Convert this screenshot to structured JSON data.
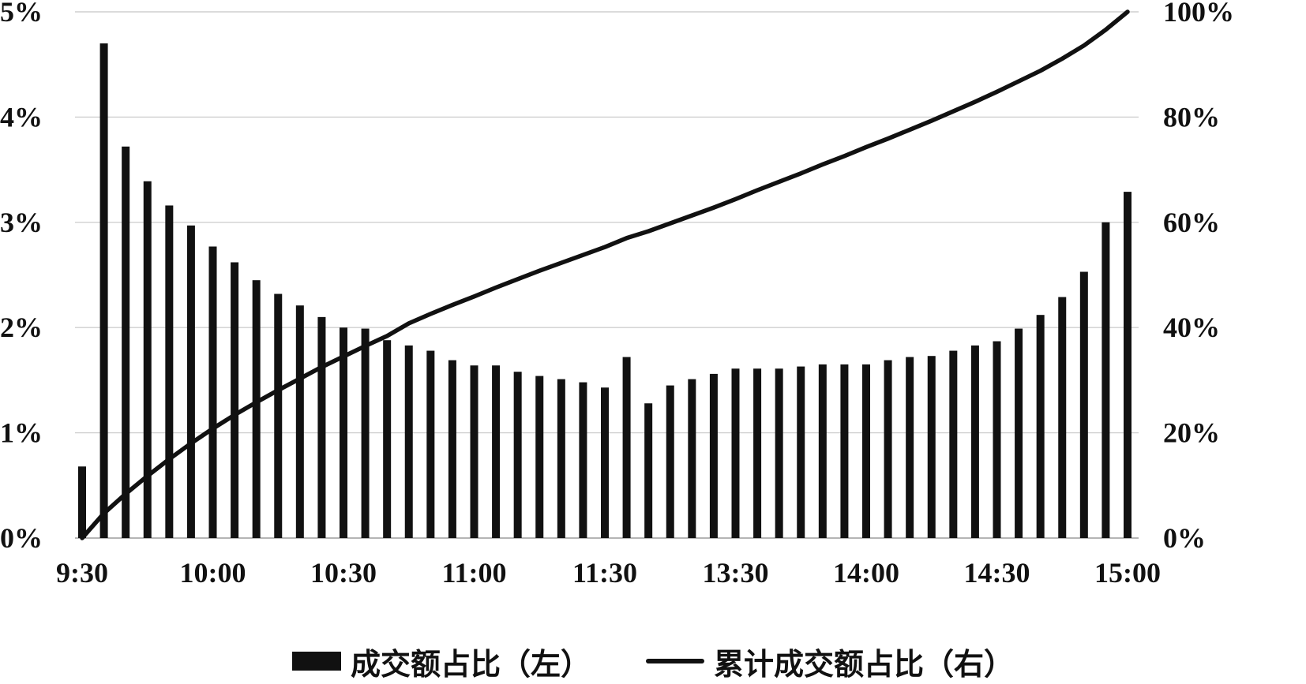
{
  "chart_data": {
    "type": "bar",
    "title": "",
    "xlabel": "",
    "ylabel": "",
    "y2label": "",
    "grid": true,
    "legend_position": "bottom",
    "colors": {
      "bar": "#111111",
      "line": "#111111",
      "grid": "#cfcfcf",
      "axis": "#b5b5b5"
    },
    "x_tick_labels": [
      "9:30",
      "10:00",
      "10:30",
      "11:00",
      "11:30",
      "13:30",
      "14:00",
      "14:30",
      "15:00"
    ],
    "x_tick_indices": [
      0,
      6,
      12,
      18,
      24,
      30,
      36,
      42,
      48
    ],
    "y_left": {
      "ylim": [
        0,
        5
      ],
      "ticks": [
        0,
        1,
        2,
        3,
        4,
        5
      ],
      "tick_labels": [
        "0%",
        "1%",
        "2%",
        "3%",
        "4%",
        "5%"
      ]
    },
    "y_right": {
      "ylim": [
        0,
        100
      ],
      "ticks": [
        0,
        20,
        40,
        60,
        80,
        100
      ],
      "tick_labels": [
        "0%",
        "20%",
        "40%",
        "60%",
        "80%",
        "100%"
      ]
    },
    "series": [
      {
        "name": "成交额占比（左）",
        "type": "bar",
        "axis": "left",
        "values": [
          0.68,
          4.7,
          3.72,
          3.39,
          3.16,
          2.97,
          2.77,
          2.62,
          2.45,
          2.32,
          2.21,
          2.1,
          2.0,
          1.99,
          1.88,
          1.83,
          1.78,
          1.69,
          1.64,
          1.64,
          1.58,
          1.54,
          1.51,
          1.48,
          1.43,
          1.72,
          1.28,
          1.45,
          1.51,
          1.56,
          1.61,
          1.61,
          1.61,
          1.63,
          1.65,
          1.65,
          1.65,
          1.69,
          1.72,
          1.73,
          1.78,
          1.83,
          1.87,
          1.99,
          2.12,
          2.29,
          2.53,
          3.0,
          3.29
        ]
      },
      {
        "name": "累计成交额占比（右）",
        "type": "line",
        "axis": "right",
        "x": [
          0,
          1,
          2,
          3,
          4,
          5,
          6,
          7,
          8,
          9,
          10,
          11,
          12,
          13,
          14,
          15,
          16,
          17,
          18,
          19,
          20,
          21,
          22,
          23,
          24,
          25,
          26,
          27,
          28,
          29,
          30,
          31,
          32,
          33,
          34,
          35,
          36,
          37,
          38,
          39,
          40,
          41,
          42,
          43,
          44,
          45,
          46,
          47,
          48
        ],
        "values": [
          0.0,
          4.7,
          8.4,
          11.8,
          15.0,
          18.0,
          20.8,
          23.4,
          25.8,
          28.1,
          30.3,
          32.5,
          34.5,
          36.5,
          38.4,
          40.8,
          42.6,
          44.3,
          45.9,
          47.6,
          49.2,
          50.8,
          52.3,
          53.8,
          55.3,
          57.0,
          58.3,
          59.8,
          61.3,
          62.8,
          64.4,
          66.1,
          67.7,
          69.3,
          71.0,
          72.6,
          74.3,
          75.9,
          77.6,
          79.3,
          81.1,
          82.9,
          84.8,
          86.8,
          88.8,
          91.1,
          93.6,
          96.6,
          100.0
        ]
      }
    ]
  }
}
